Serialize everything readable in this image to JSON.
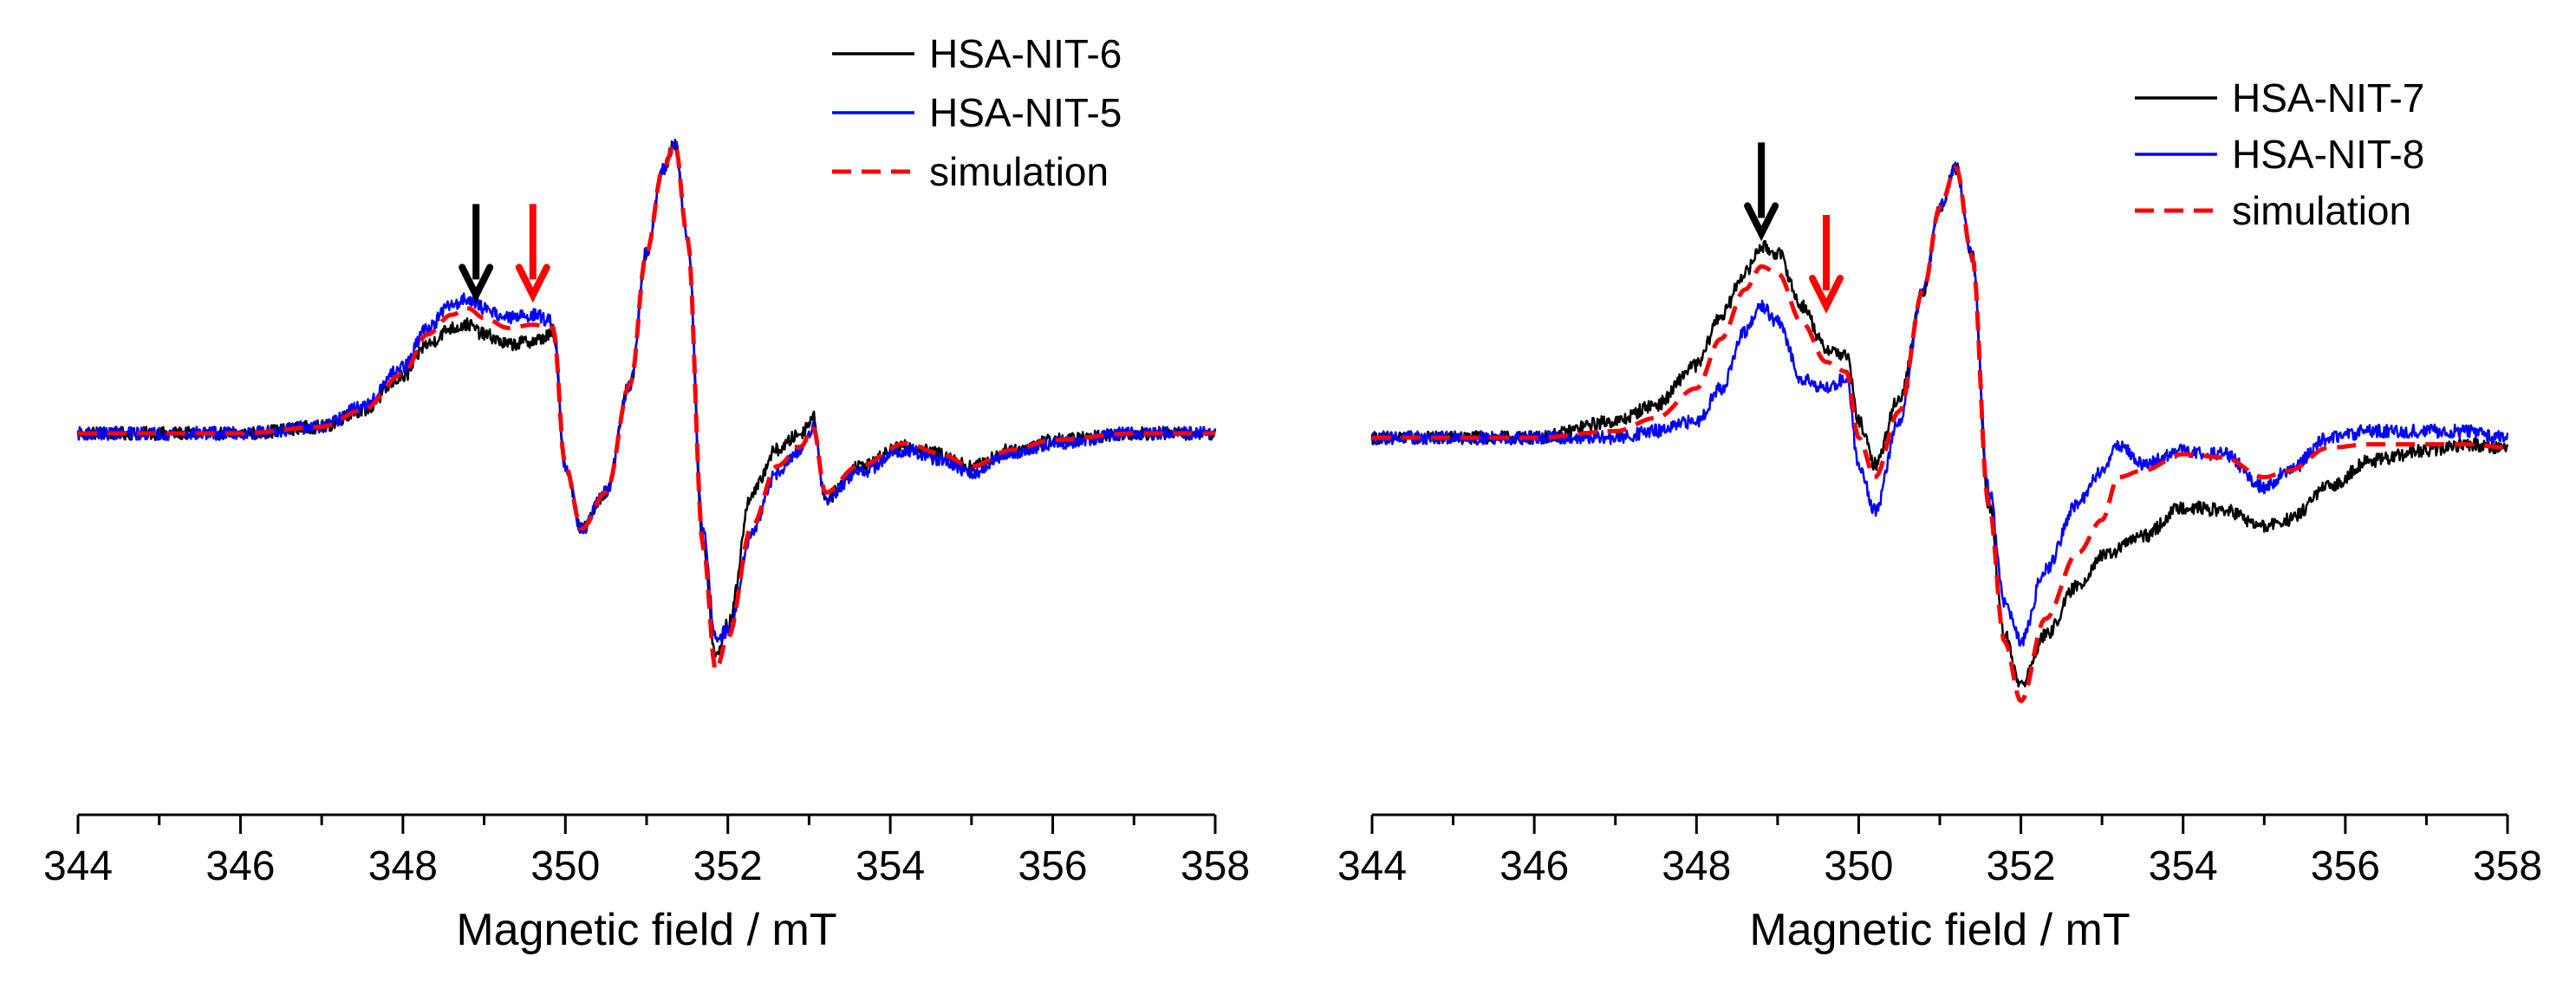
{
  "chart_data": [
    {
      "type": "line",
      "panel": "left",
      "title": "",
      "xlabel": "Magnetic field / mT",
      "ylabel": "",
      "xlim": [
        344,
        358
      ],
      "ylim": [
        -1.0,
        1.0
      ],
      "xticks": [
        344,
        346,
        348,
        350,
        352,
        354,
        356,
        358
      ],
      "xtick_labels": [
        "344",
        "346",
        "348",
        "350",
        "352",
        "354",
        "356",
        "358"
      ],
      "legend_position": "top-right",
      "legend": [
        "HSA-NIT-6",
        "HSA-NIT-5",
        "simulation"
      ],
      "series": [
        {
          "name": "HSA-NIT-6",
          "color": "#000000",
          "style": "solid",
          "x": [
            344,
            345,
            346,
            347,
            347.5,
            348,
            348.3,
            348.6,
            348.8,
            349.0,
            349.3,
            349.6,
            349.85,
            350.0,
            350.2,
            350.5,
            350.8,
            351.0,
            351.2,
            351.35,
            351.5,
            351.7,
            351.85,
            352.0,
            352.3,
            352.6,
            352.9,
            353.05,
            353.2,
            353.6,
            354.2,
            354.6,
            355.0,
            355.5,
            356.0,
            357.0,
            358.0
          ],
          "y": [
            0.0,
            0.0,
            0.0,
            0.02,
            0.07,
            0.17,
            0.27,
            0.32,
            0.33,
            0.3,
            0.27,
            0.28,
            0.3,
            -0.1,
            -0.29,
            -0.18,
            0.15,
            0.55,
            0.8,
            0.88,
            0.6,
            -0.35,
            -0.68,
            -0.58,
            -0.18,
            -0.05,
            0.0,
            0.05,
            -0.2,
            -0.1,
            -0.04,
            -0.06,
            -0.1,
            -0.05,
            -0.02,
            0.0,
            0.0
          ]
        },
        {
          "name": "HSA-NIT-5",
          "color": "#0000ff",
          "style": "solid",
          "x": [
            344,
            345,
            346,
            347,
            347.5,
            348,
            348.3,
            348.6,
            348.8,
            349.0,
            349.3,
            349.6,
            349.85,
            350.0,
            350.2,
            350.5,
            350.8,
            351.0,
            351.2,
            351.35,
            351.5,
            351.7,
            351.85,
            352.0,
            352.3,
            352.6,
            352.9,
            353.05,
            353.2,
            353.6,
            354.2,
            354.6,
            355.0,
            355.5,
            356.0,
            357.0,
            358.0
          ],
          "y": [
            0.0,
            0.0,
            0.0,
            0.02,
            0.08,
            0.2,
            0.32,
            0.39,
            0.41,
            0.38,
            0.35,
            0.36,
            0.34,
            -0.1,
            -0.29,
            -0.18,
            0.15,
            0.55,
            0.8,
            0.88,
            0.6,
            -0.3,
            -0.62,
            -0.6,
            -0.3,
            -0.12,
            -0.05,
            0.02,
            -0.2,
            -0.12,
            -0.05,
            -0.08,
            -0.12,
            -0.06,
            -0.03,
            0.0,
            0.0
          ]
        },
        {
          "name": "simulation",
          "color": "#ff0000",
          "style": "dashed",
          "x": [
            344,
            345,
            346,
            347,
            347.5,
            348,
            348.3,
            348.6,
            348.8,
            349.0,
            349.3,
            349.6,
            349.85,
            350.0,
            350.2,
            350.5,
            350.8,
            351.0,
            351.2,
            351.35,
            351.5,
            351.7,
            351.85,
            352.0,
            352.3,
            352.6,
            352.9,
            353.05,
            353.2,
            353.6,
            354.2,
            354.6,
            355.0,
            355.5,
            356.0,
            357.0,
            358.0
          ],
          "y": [
            0.0,
            0.0,
            0.0,
            0.02,
            0.07,
            0.18,
            0.3,
            0.36,
            0.38,
            0.35,
            0.32,
            0.33,
            0.32,
            -0.1,
            -0.29,
            -0.18,
            0.15,
            0.55,
            0.8,
            0.88,
            0.6,
            -0.35,
            -0.72,
            -0.62,
            -0.28,
            -0.1,
            -0.04,
            0.02,
            -0.18,
            -0.1,
            -0.03,
            -0.06,
            -0.1,
            -0.05,
            -0.02,
            0.0,
            0.0
          ]
        }
      ],
      "annotations": [
        {
          "type": "arrow",
          "color": "#000000",
          "x": 348.9,
          "y": 0.42
        },
        {
          "type": "arrow",
          "color": "#ff0000",
          "x": 349.6,
          "y": 0.42
        }
      ]
    },
    {
      "type": "line",
      "panel": "right",
      "title": "",
      "xlabel": "Magnetic field / mT",
      "ylabel": "",
      "xlim": [
        344,
        358
      ],
      "ylim": [
        -1.0,
        1.0
      ],
      "xticks": [
        344,
        346,
        348,
        350,
        352,
        354,
        356,
        358
      ],
      "xtick_labels": [
        "344",
        "346",
        "348",
        "350",
        "352",
        "354",
        "356",
        "358"
      ],
      "legend_position": "top-right",
      "legend": [
        "HSA-NIT-7",
        "HSA-NIT-8",
        "simulation"
      ],
      "series": [
        {
          "name": "HSA-NIT-7",
          "color": "#000000",
          "style": "solid",
          "x": [
            344,
            345,
            346,
            347,
            347.5,
            348,
            348.3,
            348.6,
            348.8,
            349.0,
            349.3,
            349.6,
            349.85,
            350.0,
            350.2,
            350.5,
            350.8,
            351.0,
            351.2,
            351.4,
            351.6,
            351.8,
            352.0,
            352.3,
            352.7,
            353.0,
            353.5,
            354.0,
            354.5,
            355.0,
            355.3,
            355.8,
            356.3,
            357.0,
            357.5,
            358.0
          ],
          "y": [
            0.0,
            0.0,
            0.0,
            0.05,
            0.1,
            0.22,
            0.37,
            0.5,
            0.58,
            0.56,
            0.4,
            0.27,
            0.25,
            0.05,
            -0.08,
            0.12,
            0.45,
            0.7,
            0.82,
            0.55,
            -0.2,
            -0.6,
            -0.75,
            -0.6,
            -0.45,
            -0.36,
            -0.3,
            -0.21,
            -0.22,
            -0.27,
            -0.25,
            -0.15,
            -0.07,
            -0.04,
            -0.02,
            -0.03
          ]
        },
        {
          "name": "HSA-NIT-8",
          "color": "#0000ff",
          "style": "solid",
          "x": [
            344,
            345,
            346,
            347,
            347.5,
            348,
            348.3,
            348.6,
            348.8,
            349.0,
            349.3,
            349.6,
            349.85,
            350.0,
            350.2,
            350.5,
            350.8,
            351.0,
            351.2,
            351.4,
            351.6,
            351.8,
            352.0,
            352.3,
            352.7,
            353.0,
            353.2,
            353.5,
            354.0,
            354.5,
            355.0,
            355.3,
            355.8,
            356.3,
            357.0,
            357.5,
            358.0
          ],
          "y": [
            0.0,
            0.0,
            0.0,
            0.0,
            0.02,
            0.05,
            0.15,
            0.32,
            0.4,
            0.35,
            0.18,
            0.15,
            0.18,
            -0.08,
            -0.22,
            0.05,
            0.45,
            0.7,
            0.82,
            0.55,
            -0.15,
            -0.5,
            -0.62,
            -0.4,
            -0.2,
            -0.1,
            -0.02,
            -0.08,
            -0.04,
            -0.05,
            -0.15,
            -0.1,
            0.0,
            0.02,
            0.02,
            0.02,
            0.0
          ]
        },
        {
          "name": "simulation",
          "color": "#ff0000",
          "style": "dashed",
          "x": [
            344,
            345,
            346,
            347,
            347.5,
            348,
            348.3,
            348.6,
            348.8,
            349.0,
            349.3,
            349.6,
            349.85,
            350.0,
            350.2,
            350.5,
            350.8,
            351.0,
            351.2,
            351.4,
            351.6,
            351.8,
            352.0,
            352.3,
            352.7,
            353.0,
            353.2,
            353.5,
            354.0,
            354.5,
            355.0,
            355.3,
            355.8,
            356.3,
            357.0,
            357.5,
            358.0
          ],
          "y": [
            0.0,
            0.0,
            0.0,
            0.02,
            0.06,
            0.15,
            0.3,
            0.45,
            0.52,
            0.5,
            0.35,
            0.23,
            0.2,
            0.0,
            -0.12,
            0.08,
            0.45,
            0.7,
            0.82,
            0.55,
            -0.2,
            -0.62,
            -0.8,
            -0.55,
            -0.35,
            -0.25,
            -0.12,
            -0.1,
            -0.05,
            -0.06,
            -0.12,
            -0.1,
            -0.03,
            -0.02,
            -0.02,
            -0.02,
            -0.03
          ]
        }
      ],
      "annotations": [
        {
          "type": "arrow",
          "color": "#000000",
          "x": 348.8,
          "y": 0.62
        },
        {
          "type": "arrow",
          "color": "#ff0000",
          "x": 349.6,
          "y": 0.4
        }
      ]
    }
  ]
}
